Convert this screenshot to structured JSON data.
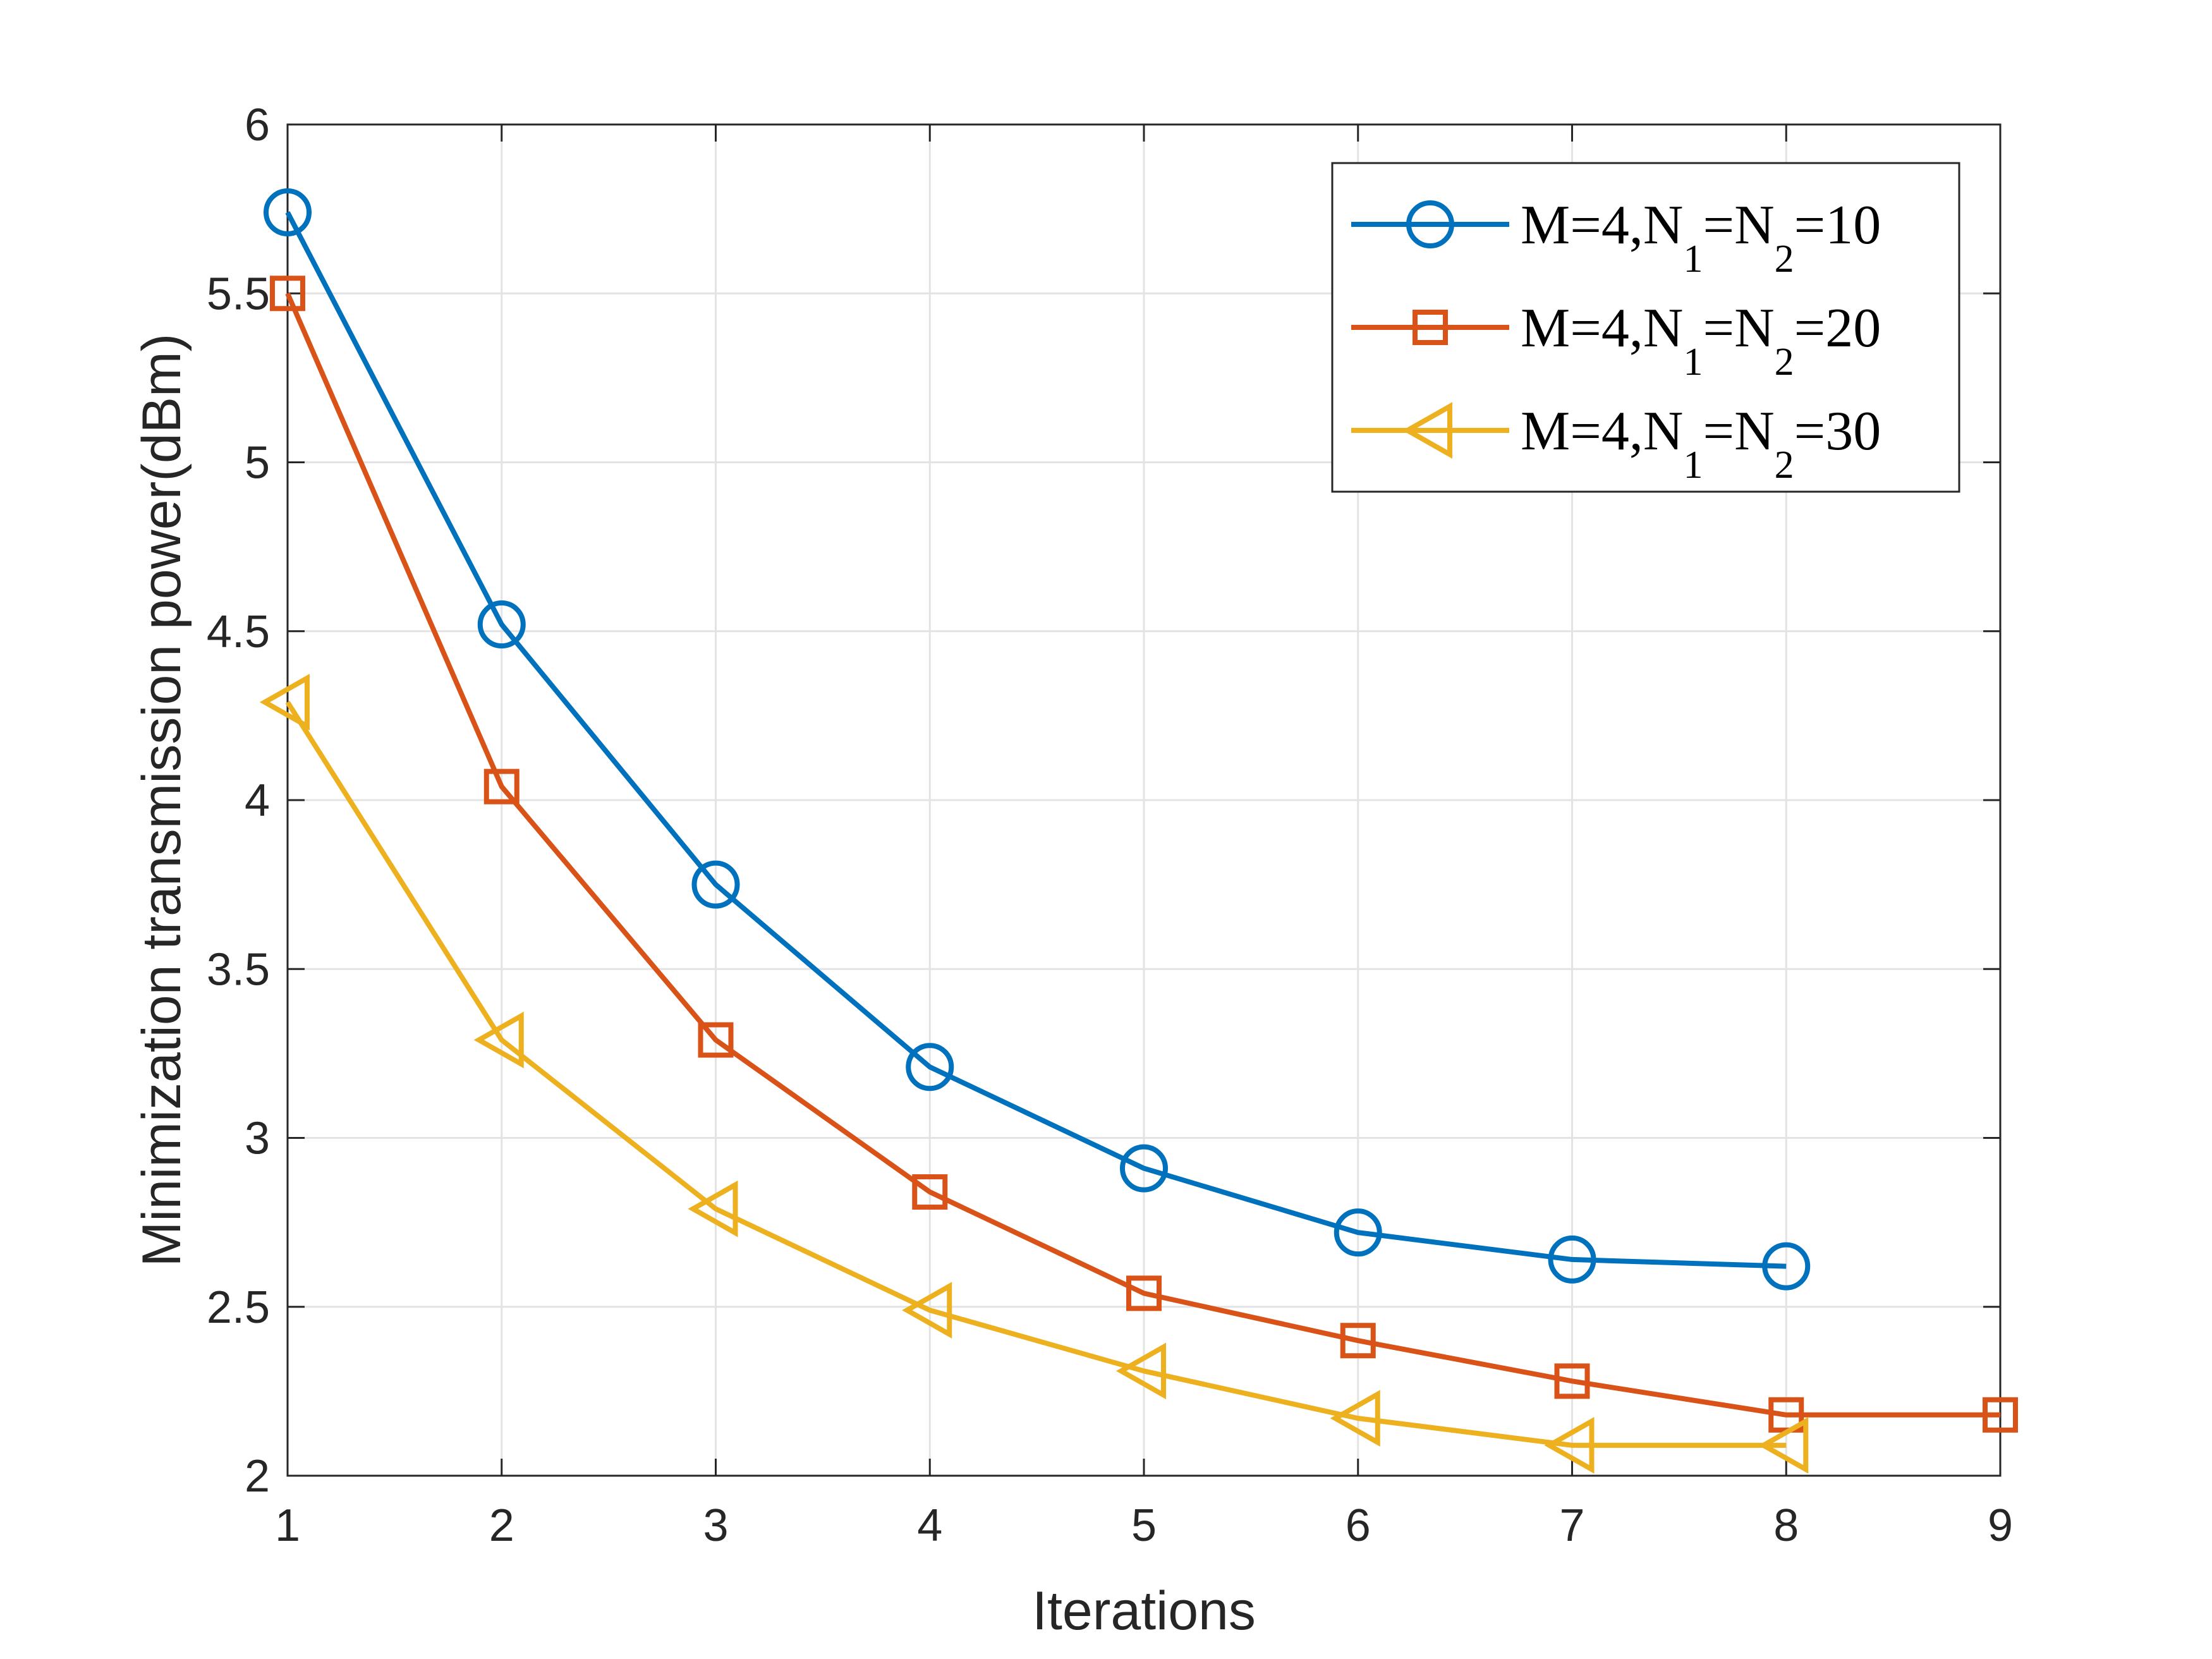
{
  "chart_data": {
    "type": "line",
    "title": "",
    "xlabel": "Iterations",
    "ylabel": "Minimization transmission power(dBm)",
    "xlim": [
      1,
      9
    ],
    "ylim": [
      2,
      6
    ],
    "xticks": [
      1,
      2,
      3,
      4,
      5,
      6,
      7,
      8,
      9
    ],
    "yticks": [
      2,
      2.5,
      3,
      3.5,
      4,
      4.5,
      5,
      5.5,
      6
    ],
    "grid": true,
    "legend_position": "top-right",
    "series": [
      {
        "name": "M=4,N1=N2=10",
        "label": {
          "prefix": "M=4,N",
          "sub1": "1",
          "mid": "=N",
          "sub2": "2",
          "suffix": "=10"
        },
        "color": "#0072BD",
        "marker": "circle",
        "x": [
          1,
          2,
          3,
          4,
          5,
          6,
          7,
          8
        ],
        "values": [
          5.74,
          4.52,
          3.75,
          3.21,
          2.91,
          2.72,
          2.64,
          2.62
        ]
      },
      {
        "name": "M=4,N1=N2=20",
        "label": {
          "prefix": "M=4,N",
          "sub1": "1",
          "mid": "=N",
          "sub2": "2",
          "suffix": "=20"
        },
        "color": "#D95319",
        "marker": "square",
        "x": [
          1,
          2,
          3,
          4,
          5,
          6,
          7,
          8,
          9
        ],
        "values": [
          5.5,
          4.04,
          3.29,
          2.84,
          2.54,
          2.4,
          2.28,
          2.18,
          2.18
        ]
      },
      {
        "name": "M=4,N1=N2=30",
        "label": {
          "prefix": "M=4,N",
          "sub1": "1",
          "mid": "=N",
          "sub2": "2",
          "suffix": "=30"
        },
        "color": "#EDB120",
        "marker": "triangle-left",
        "x": [
          1,
          2,
          3,
          4,
          5,
          6,
          7,
          8
        ],
        "values": [
          4.29,
          3.29,
          2.79,
          2.49,
          2.31,
          2.17,
          2.09,
          2.09
        ]
      }
    ]
  }
}
